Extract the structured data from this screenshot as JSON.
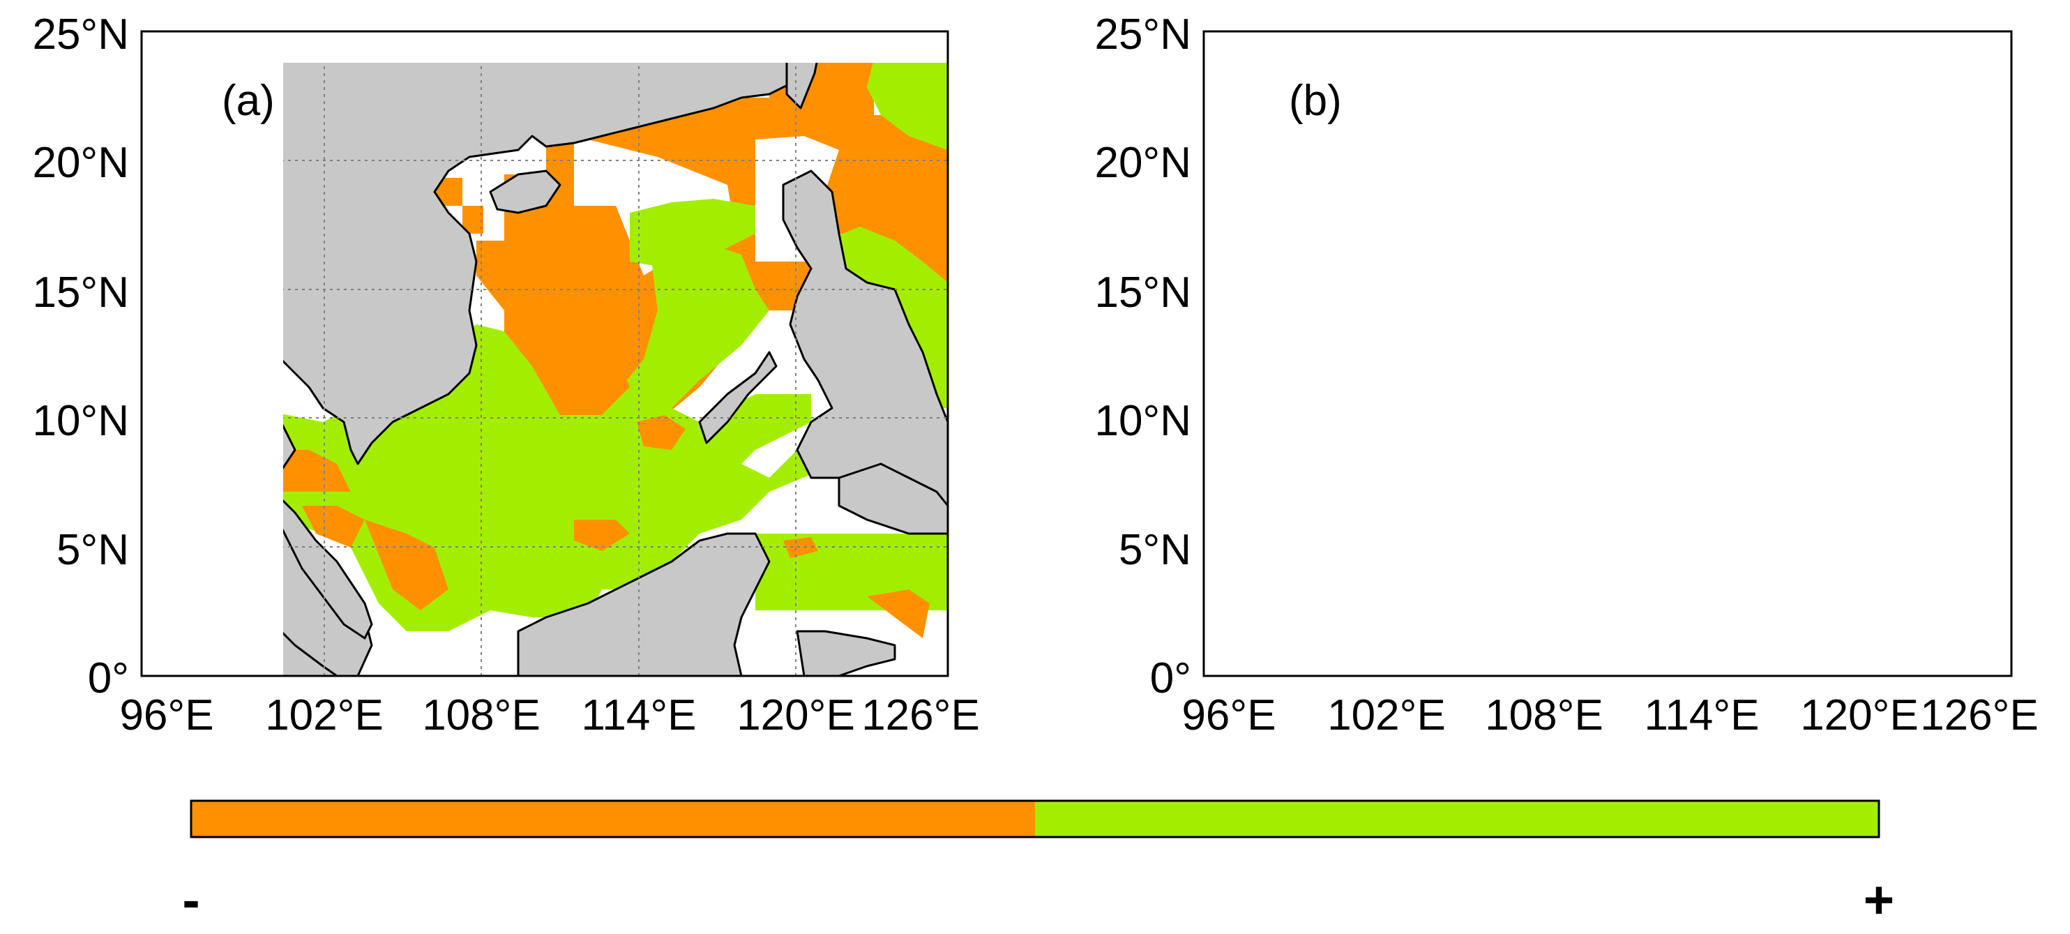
{
  "panels": [
    {
      "id": "a",
      "label": "(a)"
    },
    {
      "id": "b",
      "label": "(b)"
    }
  ],
  "axes": {
    "x_ticks": [
      "96°E",
      "102°E",
      "108°E",
      "114°E",
      "120°E",
      "126°E"
    ],
    "y_ticks": [
      "25°N",
      "20°N",
      "15°N",
      "10°N",
      "5°N",
      "0°"
    ]
  },
  "colorbar": {
    "negative_label": "-",
    "positive_label": "+",
    "negative_color": "#ff9100",
    "positive_color": "#a3ee00"
  },
  "colors": {
    "land": "#c8c8c8",
    "ocean": "#ffffff",
    "negative": "#ff9100",
    "positive": "#a3ee00",
    "grid": "#808080"
  }
}
